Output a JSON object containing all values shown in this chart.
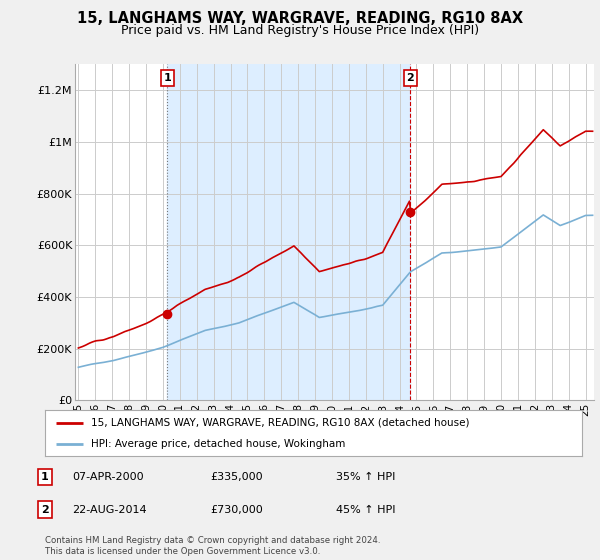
{
  "title": "15, LANGHAMS WAY, WARGRAVE, READING, RG10 8AX",
  "subtitle": "Price paid vs. HM Land Registry's House Price Index (HPI)",
  "ylabel_ticks": [
    "£0",
    "£200K",
    "£400K",
    "£600K",
    "£800K",
    "£1M",
    "£1.2M"
  ],
  "ytick_values": [
    0,
    200000,
    400000,
    600000,
    800000,
    1000000,
    1200000
  ],
  "ylim": [
    0,
    1300000
  ],
  "background_color": "#f0f0f0",
  "plot_bg_color": "#ffffff",
  "grid_color": "#cccccc",
  "sale1_date": 2000.27,
  "sale1_price": 335000,
  "sale2_date": 2014.64,
  "sale2_price": 730000,
  "hpi_color": "#7ab0d4",
  "price_line_color": "#cc0000",
  "shade_color": "#ddeeff",
  "legend_label_price": "15, LANGHAMS WAY, WARGRAVE, READING, RG10 8AX (detached house)",
  "legend_label_hpi": "HPI: Average price, detached house, Wokingham",
  "ann1_label": "1",
  "ann1_date": "07-APR-2000",
  "ann1_price": "£335,000",
  "ann1_hpi": "35% ↑ HPI",
  "ann2_label": "2",
  "ann2_date": "22-AUG-2014",
  "ann2_price": "£730,000",
  "ann2_hpi": "45% ↑ HPI",
  "copyright_text": "Contains HM Land Registry data © Crown copyright and database right 2024.\nThis data is licensed under the Open Government Licence v3.0.",
  "xmin": 1994.8,
  "xmax": 2025.5
}
